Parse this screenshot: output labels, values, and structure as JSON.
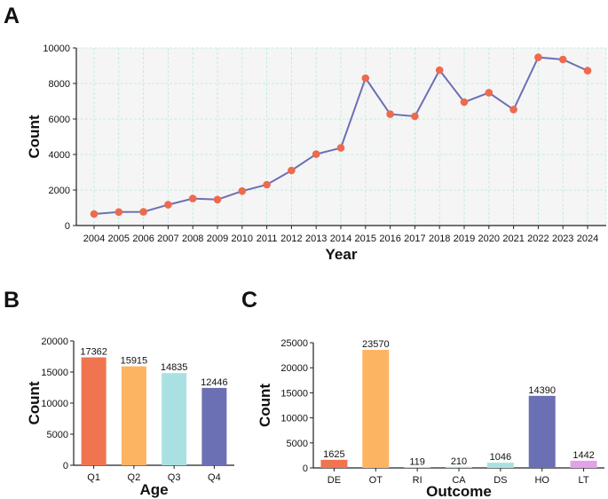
{
  "colors": {
    "line": "#6b70b4",
    "marker": "#ee6a4d",
    "grid": "#b9ead9",
    "plot_bg": "#f5f5f5",
    "axis": "#222222"
  },
  "chart_data": [
    {
      "panel": "A",
      "type": "line",
      "xlabel": "Year",
      "ylabel": "Count",
      "ylim": [
        0,
        10000
      ],
      "yticks": [
        0,
        2000,
        4000,
        6000,
        8000,
        10000
      ],
      "grid": true,
      "x": [
        "2004",
        "2005",
        "2006",
        "2007",
        "2008",
        "2009",
        "2010",
        "2011",
        "2012",
        "2013",
        "2014",
        "2015",
        "2016",
        "2017",
        "2018",
        "2019",
        "2020",
        "2021",
        "2022",
        "2023",
        "2024"
      ],
      "values": [
        650,
        760,
        770,
        1170,
        1520,
        1460,
        1940,
        2300,
        3100,
        4020,
        4370,
        8300,
        6270,
        6150,
        8750,
        6950,
        7480,
        6530,
        9470,
        9350,
        8720
      ]
    },
    {
      "panel": "B",
      "type": "bar",
      "xlabel": "Age",
      "ylabel": "Count",
      "ylim": [
        0,
        20000
      ],
      "yticks": [
        0,
        5000,
        10000,
        15000,
        20000
      ],
      "categories": [
        "Q1",
        "Q2",
        "Q3",
        "Q4"
      ],
      "values": [
        17362,
        15915,
        14835,
        12446
      ],
      "bar_colors": [
        "#f07450",
        "#fdb462",
        "#a9e1e2",
        "#6b70b4"
      ]
    },
    {
      "panel": "C",
      "type": "bar",
      "xlabel": "Outcome",
      "ylabel": "Count",
      "ylim": [
        0,
        25000
      ],
      "yticks": [
        0,
        5000,
        10000,
        15000,
        20000,
        25000
      ],
      "categories": [
        "DE",
        "OT",
        "RI",
        "CA",
        "DS",
        "HO",
        "LT"
      ],
      "values": [
        1625,
        23570,
        119,
        210,
        1046,
        14390,
        1442
      ],
      "bar_colors": [
        "#f07450",
        "#fdb462",
        "#a9e1e2",
        "#a9e1e2",
        "#a9e1e2",
        "#6b70b4",
        "#e3a1ea"
      ]
    }
  ]
}
